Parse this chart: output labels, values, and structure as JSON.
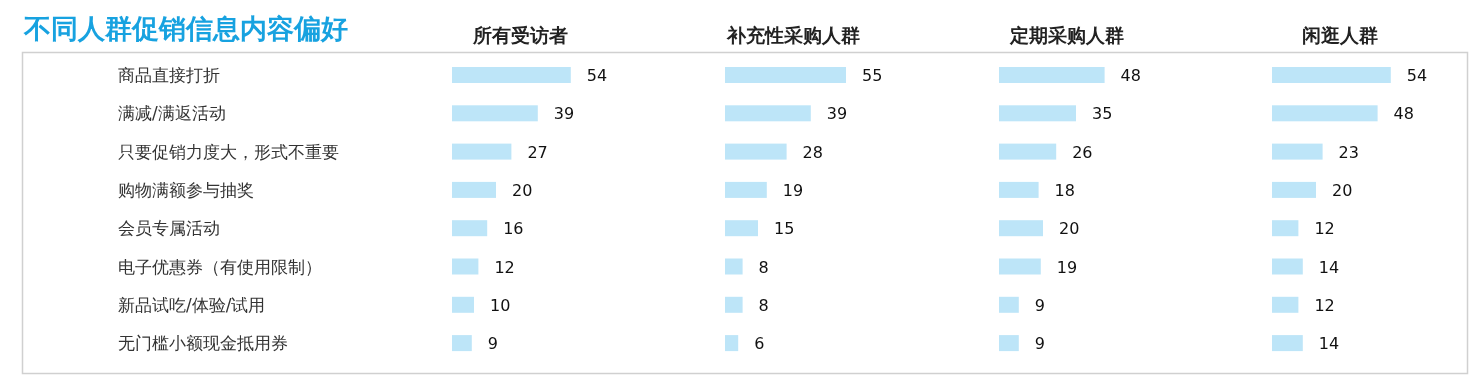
{
  "chart_data": [
    {
      "type": "bar",
      "orientation": "horizontal",
      "title": "不同人群促销信息内容偏好",
      "subtitle": "所有受访者",
      "categories": [
        "商品直接打折",
        "满减/满返活动",
        "只要促销力度大，形式不重要",
        "购物满额参与抽奖",
        "会员专属活动",
        "电子优惠券（有使用限制）",
        "新品试吃/体验/试用",
        "无门槛小额现金抵用券"
      ],
      "values": [
        54,
        39,
        27,
        20,
        16,
        12,
        10,
        9
      ],
      "color": "#bde5f8",
      "data_labels": true
    },
    {
      "type": "bar",
      "orientation": "horizontal",
      "title": "补充性采购人群",
      "categories": [
        null,
        null,
        null,
        null,
        null,
        null,
        null,
        null
      ],
      "values": [
        55,
        39,
        28,
        19,
        15,
        8,
        8,
        6
      ],
      "color": "#bde5f8",
      "data_labels": true
    },
    {
      "type": "bar",
      "orientation": "horizontal",
      "title": "定期采购人群",
      "categories": [
        null,
        null,
        null,
        null,
        null,
        null,
        null,
        null
      ],
      "values": [
        48,
        35,
        26,
        18,
        20,
        19,
        9,
        9
      ],
      "color": "#bde5f8",
      "data_labels": true
    },
    {
      "type": "bar",
      "orientation": "horizontal",
      "title": "闲逛人群",
      "categories": [
        null,
        null,
        null,
        null,
        null,
        null,
        null,
        null
      ],
      "values": [
        54,
        48,
        23,
        20,
        12,
        14,
        12,
        14
      ],
      "color": "#bde5f8",
      "data_labels": true
    }
  ]
}
